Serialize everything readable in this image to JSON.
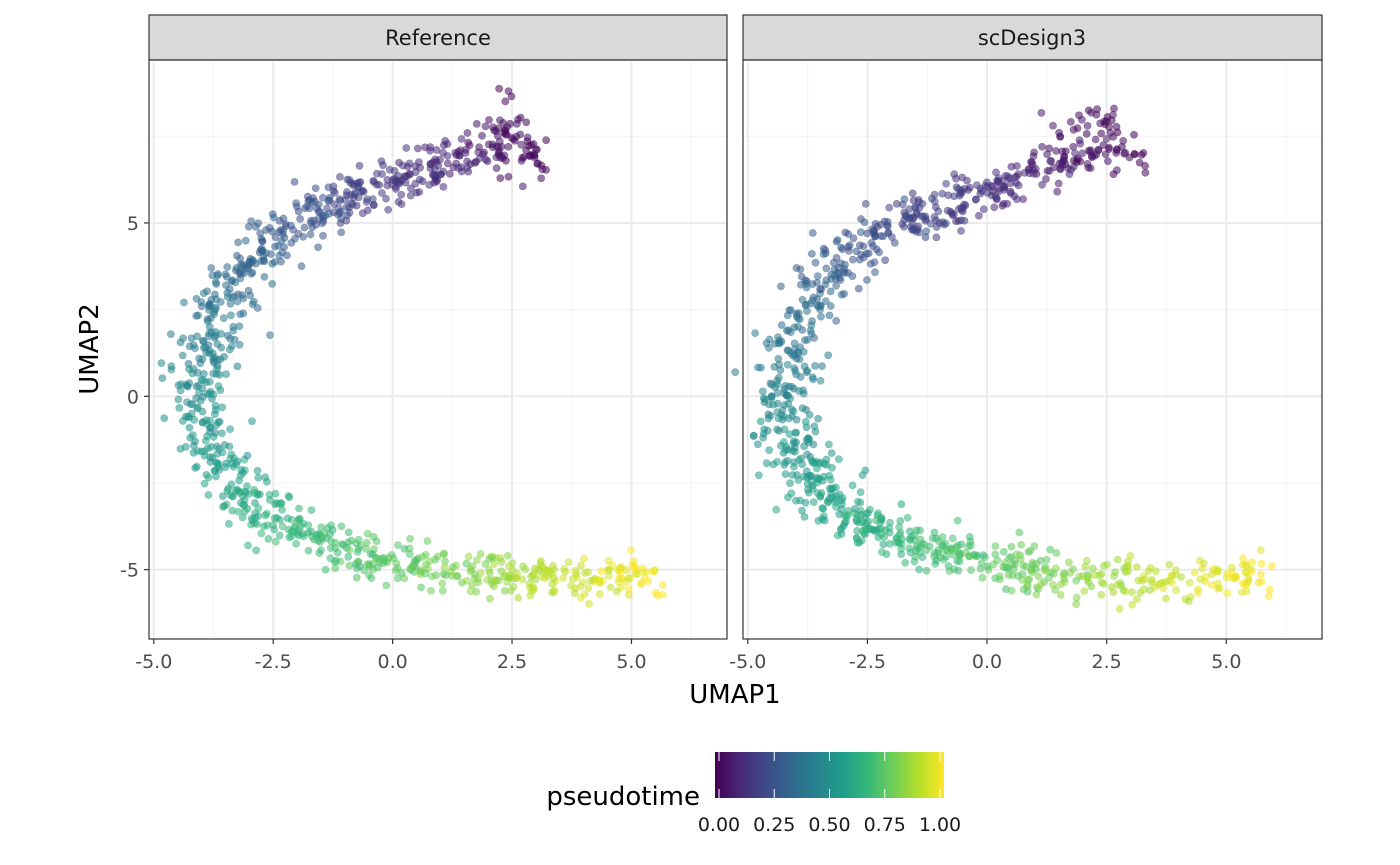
{
  "chart_data": {
    "type": "scatter",
    "xlabel": "UMAP1",
    "ylabel": "UMAP2",
    "xlim": [
      -5.1,
      7.0
    ],
    "ylim": [
      -7.0,
      9.7
    ],
    "x_ticks": [
      -5.0,
      -2.5,
      0.0,
      2.5,
      5.0
    ],
    "x_tick_labels": [
      "-5.0",
      "-2.5",
      "0.0",
      "2.5",
      "5.0"
    ],
    "y_ticks": [
      -5,
      0,
      5
    ],
    "y_tick_labels": [
      "-5",
      "0",
      "5"
    ],
    "grid": true,
    "panels": [
      {
        "name": "Reference",
        "curve": [
          {
            "x": 3.0,
            "y": 7.5,
            "t": 0.0
          },
          {
            "x": 2.2,
            "y": 7.3,
            "t": 0.05
          },
          {
            "x": 1.2,
            "y": 6.8,
            "t": 0.1
          },
          {
            "x": 0.2,
            "y": 6.1,
            "t": 0.15
          },
          {
            "x": -0.9,
            "y": 5.7,
            "t": 0.2
          },
          {
            "x": -1.8,
            "y": 5.2,
            "t": 0.25
          },
          {
            "x": -2.7,
            "y": 4.3,
            "t": 0.3
          },
          {
            "x": -3.3,
            "y": 3.3,
            "t": 0.35
          },
          {
            "x": -3.75,
            "y": 2.2,
            "t": 0.4
          },
          {
            "x": -3.95,
            "y": 1.0,
            "t": 0.45
          },
          {
            "x": -4.0,
            "y": -0.3,
            "t": 0.5
          },
          {
            "x": -3.7,
            "y": -1.8,
            "t": 0.55
          },
          {
            "x": -3.1,
            "y": -3.0,
            "t": 0.6
          },
          {
            "x": -2.2,
            "y": -3.8,
            "t": 0.65
          },
          {
            "x": -1.0,
            "y": -4.4,
            "t": 0.7
          },
          {
            "x": 0.3,
            "y": -4.9,
            "t": 0.75
          },
          {
            "x": 1.5,
            "y": -5.1,
            "t": 0.8
          },
          {
            "x": 2.8,
            "y": -5.2,
            "t": 0.87
          },
          {
            "x": 4.2,
            "y": -5.2,
            "t": 0.94
          },
          {
            "x": 5.6,
            "y": -5.1,
            "t": 1.0
          }
        ]
      },
      {
        "name": "scDesign3",
        "curve": [
          {
            "x": 3.0,
            "y": 7.6,
            "t": 0.0
          },
          {
            "x": 2.0,
            "y": 7.1,
            "t": 0.05
          },
          {
            "x": 0.8,
            "y": 6.3,
            "t": 0.1
          },
          {
            "x": -0.4,
            "y": 5.8,
            "t": 0.15
          },
          {
            "x": -1.5,
            "y": 5.2,
            "t": 0.2
          },
          {
            "x": -2.5,
            "y": 4.4,
            "t": 0.25
          },
          {
            "x": -3.3,
            "y": 3.5,
            "t": 0.3
          },
          {
            "x": -3.8,
            "y": 2.5,
            "t": 0.35
          },
          {
            "x": -4.15,
            "y": 1.3,
            "t": 0.4
          },
          {
            "x": -4.3,
            "y": 0.0,
            "t": 0.45
          },
          {
            "x": -4.1,
            "y": -1.3,
            "t": 0.5
          },
          {
            "x": -3.6,
            "y": -2.5,
            "t": 0.55
          },
          {
            "x": -2.9,
            "y": -3.5,
            "t": 0.6
          },
          {
            "x": -2.0,
            "y": -4.1,
            "t": 0.65
          },
          {
            "x": -0.8,
            "y": -4.5,
            "t": 0.7
          },
          {
            "x": 0.5,
            "y": -4.9,
            "t": 0.75
          },
          {
            "x": 1.7,
            "y": -5.2,
            "t": 0.81
          },
          {
            "x": 3.0,
            "y": -5.4,
            "t": 0.88
          },
          {
            "x": 4.5,
            "y": -5.3,
            "t": 0.95
          },
          {
            "x": 5.9,
            "y": -5.1,
            "t": 1.0
          }
        ]
      }
    ],
    "points_per_panel": 1000,
    "point_opacity": 0.55,
    "legend": {
      "title": "pseudotime",
      "position": "bottom",
      "breaks": [
        0.0,
        0.25,
        0.5,
        0.75,
        1.0
      ],
      "labels": [
        "0.00",
        "0.25",
        "0.50",
        "0.75",
        "1.00"
      ]
    },
    "colors": {
      "viridis": [
        "#440154",
        "#482878",
        "#3e4a89",
        "#31688e",
        "#26828e",
        "#1f9e89",
        "#35b779",
        "#6ece58",
        "#b5de2b",
        "#fde725"
      ],
      "strip_fill": "#d9d9d9",
      "strip_border": "#333333",
      "panel_border": "#333333",
      "grid_major": "#ebebeb",
      "grid_minor": "#f5f5f5"
    }
  }
}
